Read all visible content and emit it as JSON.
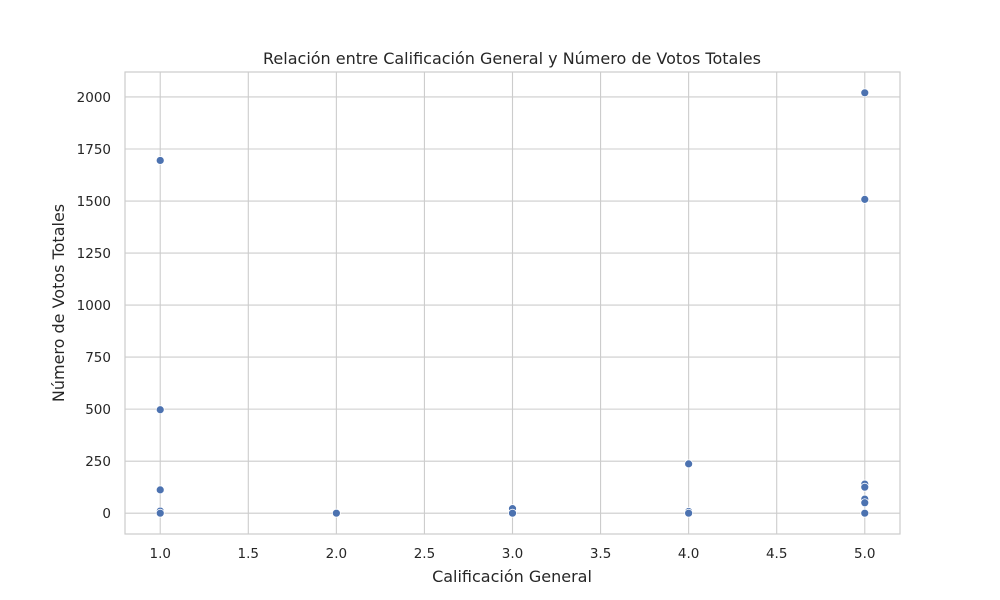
{
  "chart_data": {
    "type": "scatter",
    "title": "Relación entre Calificación General y Número de Votos Totales",
    "xlabel": "Calificación General",
    "ylabel": "Número de Votos Totales",
    "xlim": [
      0.8,
      5.2
    ],
    "ylim": [
      -100,
      2120
    ],
    "xticks": [
      1.0,
      1.5,
      2.0,
      2.5,
      3.0,
      3.5,
      4.0,
      4.5,
      5.0
    ],
    "xtick_labels": [
      "1.0",
      "1.5",
      "2.0",
      "2.5",
      "3.0",
      "3.5",
      "4.0",
      "4.5",
      "5.0"
    ],
    "yticks": [
      0,
      250,
      500,
      750,
      1000,
      1250,
      1500,
      1750,
      2000
    ],
    "ytick_labels": [
      "0",
      "250",
      "500",
      "750",
      "1000",
      "1250",
      "1500",
      "1750",
      "2000"
    ],
    "grid": true,
    "legend": "none",
    "point_color": "#4c72b0",
    "grid_color": "#cccccc",
    "text_color": "#262626",
    "series": [
      {
        "points": [
          {
            "x": 1.0,
            "y": 1695
          },
          {
            "x": 1.0,
            "y": 497
          },
          {
            "x": 1.0,
            "y": 112
          },
          {
            "x": 1.0,
            "y": 10
          },
          {
            "x": 1.0,
            "y": 0
          },
          {
            "x": 2.0,
            "y": 0
          },
          {
            "x": 3.0,
            "y": 22
          },
          {
            "x": 3.0,
            "y": 0
          },
          {
            "x": 4.0,
            "y": 237
          },
          {
            "x": 4.0,
            "y": 8
          },
          {
            "x": 4.0,
            "y": 0
          },
          {
            "x": 5.0,
            "y": 2020
          },
          {
            "x": 5.0,
            "y": 1508
          },
          {
            "x": 5.0,
            "y": 140
          },
          {
            "x": 5.0,
            "y": 125
          },
          {
            "x": 5.0,
            "y": 68
          },
          {
            "x": 5.0,
            "y": 50
          },
          {
            "x": 5.0,
            "y": 0
          }
        ]
      }
    ]
  }
}
